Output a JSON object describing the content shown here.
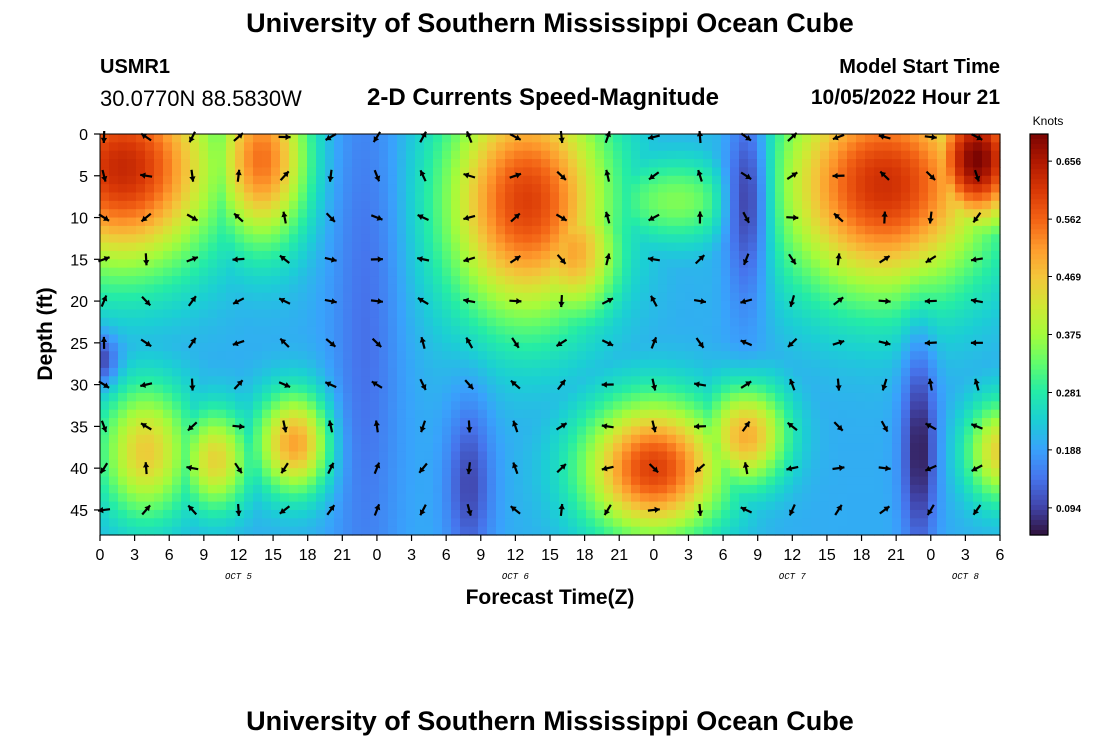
{
  "header": {
    "title": "University of Southern Mississippi Ocean Cube",
    "station_id": "USMR1",
    "coordinates": "30.0770N  88.5830W",
    "subtitle": "2-D Currents Speed-Magnitude",
    "model_start_label": "Model Start Time",
    "model_start_value": "10/05/2022 Hour 21"
  },
  "footer": {
    "title": "University of Southern Mississippi Ocean Cube"
  },
  "chart_data": {
    "type": "heatmap",
    "title": "2-D Currents Speed-Magnitude",
    "xlabel": "Forecast Time(Z)",
    "ylabel": "Depth (ft)",
    "x_range_hours": [
      0,
      78
    ],
    "y_range_ft": [
      0,
      48
    ],
    "x_tick_labels": [
      "0",
      "3",
      "6",
      "9",
      "12",
      "15",
      "18",
      "21",
      "0",
      "3",
      "6",
      "9",
      "12",
      "15",
      "18",
      "21",
      "0",
      "3",
      "6",
      "9",
      "12",
      "15",
      "18",
      "21",
      "0",
      "3",
      "6"
    ],
    "y_ticks": [
      0,
      5,
      10,
      15,
      20,
      25,
      30,
      35,
      40,
      45
    ],
    "day_labels": [
      {
        "text": "OCT 5",
        "hour": 12
      },
      {
        "text": "OCT 6",
        "hour": 36
      },
      {
        "text": "OCT 7",
        "hour": 60
      },
      {
        "text": "OCT 8",
        "hour": 75
      }
    ],
    "colorbar": {
      "units": "Knots",
      "range": [
        0.05,
        0.7
      ],
      "ticks": [
        0.094,
        0.188,
        0.281,
        0.375,
        0.469,
        0.562,
        0.656
      ],
      "colors": [
        "#30123b",
        "#4145ab",
        "#4675ed",
        "#39a2fc",
        "#1bcfd4",
        "#24eca6",
        "#61fc6c",
        "#a4fc3b",
        "#d1e834",
        "#f3c63a",
        "#fe9b2d",
        "#f36315",
        "#d93806",
        "#b11901",
        "#7a0402"
      ]
    },
    "speed_peaks": [
      {
        "t": 2,
        "d": 4,
        "value": 0.63,
        "spread_t": 8,
        "spread_d": 12
      },
      {
        "t": 14,
        "d": 3,
        "value": 0.55,
        "spread_t": 4,
        "spread_d": 10
      },
      {
        "t": 4,
        "d": 38,
        "value": 0.46,
        "spread_t": 4,
        "spread_d": 8
      },
      {
        "t": 10,
        "d": 39,
        "value": 0.45,
        "spread_t": 3,
        "spread_d": 6
      },
      {
        "t": 17,
        "d": 37,
        "value": 0.51,
        "spread_t": 3.5,
        "spread_d": 6
      },
      {
        "t": 37,
        "d": 8,
        "value": 0.6,
        "spread_t": 7,
        "spread_d": 14
      },
      {
        "t": 41,
        "d": 14,
        "value": 0.5,
        "spread_t": 4,
        "spread_d": 8
      },
      {
        "t": 50,
        "d": 8,
        "value": 0.35,
        "spread_t": 6,
        "spread_d": 5
      },
      {
        "t": 48,
        "d": 40,
        "value": 0.6,
        "spread_t": 6,
        "spread_d": 8
      },
      {
        "t": 56,
        "d": 36,
        "value": 0.5,
        "spread_t": 3.5,
        "spread_d": 6
      },
      {
        "t": 68,
        "d": 6,
        "value": 0.62,
        "spread_t": 9,
        "spread_d": 13
      },
      {
        "t": 76,
        "d": 3,
        "value": 0.7,
        "spread_t": 4,
        "spread_d": 8
      },
      {
        "t": 78,
        "d": 38,
        "value": 0.45,
        "spread_t": 3,
        "spread_d": 6
      }
    ],
    "speed_troughs": [
      {
        "t": 23,
        "d": 25,
        "value": 0.14,
        "spread_t": 3,
        "spread_d": 40
      },
      {
        "t": 32,
        "d": 42,
        "value": 0.1,
        "spread_t": 2,
        "spread_d": 10
      },
      {
        "t": 56,
        "d": 8,
        "value": 0.1,
        "spread_t": 2,
        "spread_d": 14
      },
      {
        "t": 71,
        "d": 38,
        "value": 0.06,
        "spread_t": 1.5,
        "spread_d": 12
      },
      {
        "t": 0,
        "d": 27,
        "value": 0.1,
        "spread_t": 1.5,
        "spread_d": 3
      }
    ],
    "arrow_columns_hours": [
      0,
      4,
      8,
      12,
      16,
      20,
      24,
      28,
      32,
      36,
      40,
      44,
      48,
      52,
      56,
      60,
      64,
      68,
      72,
      76
    ],
    "arrow_rows_ft": [
      0,
      5,
      10,
      15,
      20,
      25,
      30,
      35,
      40,
      45
    ]
  }
}
